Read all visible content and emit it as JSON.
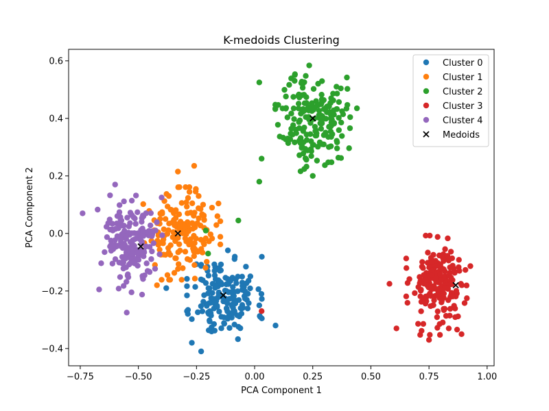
{
  "chart_data": {
    "type": "scatter",
    "title": "K-medoids Clustering",
    "xlabel": "PCA Component 1",
    "ylabel": "PCA Component 2",
    "xlim": [
      -0.8,
      1.03
    ],
    "ylim": [
      -0.46,
      0.64
    ],
    "x_ticks": [
      -0.75,
      -0.5,
      -0.25,
      0.0,
      0.25,
      0.5,
      0.75,
      1.0
    ],
    "x_tick_labels": [
      "−0.75",
      "−0.50",
      "−0.25",
      "0.00",
      "0.25",
      "0.50",
      "0.75",
      "1.00"
    ],
    "y_ticks": [
      -0.4,
      -0.2,
      0.0,
      0.2,
      0.4,
      0.6
    ],
    "y_tick_labels": [
      "−0.4",
      "−0.2",
      "0.0",
      "0.2",
      "0.4",
      "0.6"
    ],
    "grid": false,
    "legend_position": "top-right",
    "series": [
      {
        "name": "Cluster 0",
        "color": "#1f77b4",
        "center": [
          -0.13,
          -0.22
        ],
        "spread": [
          0.07,
          0.07
        ],
        "count": 170,
        "seed": 11,
        "extra_points": [
          [
            -0.27,
            -0.38
          ],
          [
            -0.23,
            -0.41
          ],
          [
            0.09,
            -0.32
          ],
          [
            -0.38,
            -0.19
          ],
          [
            0.02,
            -0.25
          ]
        ]
      },
      {
        "name": "Cluster 1",
        "color": "#ff7f0e",
        "center": [
          -0.32,
          0.0
        ],
        "spread": [
          0.075,
          0.07
        ],
        "count": 170,
        "seed": 23,
        "extra_points": [
          [
            -0.26,
            0.235
          ],
          [
            -0.33,
            0.215
          ],
          [
            -0.42,
            -0.18
          ],
          [
            -0.16,
            0.06
          ]
        ]
      },
      {
        "name": "Cluster 2",
        "color": "#2ca02c",
        "center": [
          0.25,
          0.4
        ],
        "spread": [
          0.07,
          0.08
        ],
        "count": 200,
        "seed": 37,
        "extra_points": [
          [
            0.02,
            0.18
          ],
          [
            0.03,
            0.26
          ],
          [
            0.02,
            0.525
          ],
          [
            -0.07,
            0.045
          ],
          [
            -0.21,
            0.01
          ],
          [
            -0.2,
            -0.07
          ],
          [
            0.44,
            0.435
          ],
          [
            0.25,
            0.2
          ]
        ]
      },
      {
        "name": "Cluster 3",
        "color": "#d62728",
        "center": [
          0.79,
          -0.18
        ],
        "spread": [
          0.06,
          0.075
        ],
        "count": 200,
        "seed": 53,
        "extra_points": [
          [
            0.03,
            -0.27
          ],
          [
            0.58,
            -0.175
          ],
          [
            0.61,
            -0.33
          ],
          [
            0.75,
            -0.37
          ],
          [
            0.89,
            -0.35
          ]
        ]
      },
      {
        "name": "Cluster 4",
        "color": "#9467bd",
        "center": [
          -0.53,
          -0.04
        ],
        "spread": [
          0.065,
          0.075
        ],
        "count": 180,
        "seed": 71,
        "extra_points": [
          [
            -0.74,
            0.07
          ],
          [
            -0.6,
            0.17
          ],
          [
            -0.55,
            -0.275
          ],
          [
            -0.4,
            0.125
          ]
        ]
      }
    ],
    "medoids": {
      "name": "Medoids",
      "color": "#000000",
      "marker": "x",
      "points": [
        [
          -0.135,
          -0.215
        ],
        [
          -0.33,
          0.0
        ],
        [
          0.25,
          0.4
        ],
        [
          0.865,
          -0.18
        ],
        [
          -0.49,
          -0.045
        ]
      ]
    }
  }
}
